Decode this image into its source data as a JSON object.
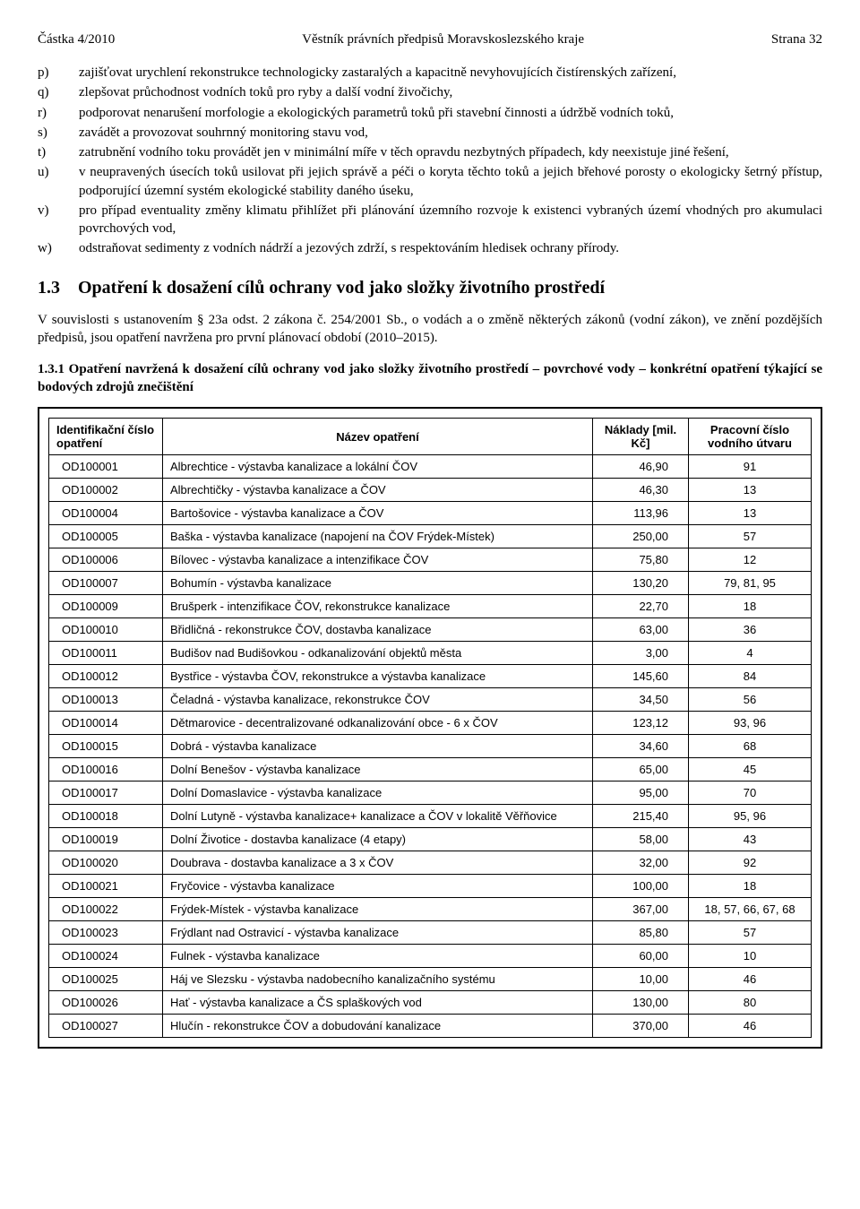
{
  "header": {
    "left": "Částka 4/2010",
    "center": "Věstník právních předpisů Moravskoslezského kraje",
    "right": "Strana 32"
  },
  "list": [
    {
      "label": "p)",
      "text": "zajišťovat urychlení rekonstrukce technologicky zastaralých a kapacitně nevyhovujících čistírenských zařízení,"
    },
    {
      "label": "q)",
      "text": "zlepšovat průchodnost vodních toků pro ryby a další vodní živočichy,"
    },
    {
      "label": "r)",
      "text": "podporovat nenarušení morfologie a ekologických parametrů toků při stavební činnosti a údržbě vodních toků,"
    },
    {
      "label": "s)",
      "text": "zavádět a provozovat souhrnný monitoring stavu vod,"
    },
    {
      "label": "t)",
      "text": "zatrubnění vodního toku provádět jen v minimální míře v těch opravdu nezbytných případech, kdy neexistuje jiné řešení,"
    },
    {
      "label": "u)",
      "text": "v neupravených úsecích toků usilovat při jejich správě a péči o koryta těchto toků a jejich břehové porosty o ekologicky šetrný přístup, podporující územní systém ekologické stability daného úseku,"
    },
    {
      "label": "v)",
      "text": "pro případ eventuality změny klimatu přihlížet při plánování územního rozvoje k existenci vybraných území vhodných pro akumulaci povrchových vod,"
    },
    {
      "label": "w)",
      "text": "odstraňovat sedimenty z vodních nádrží a jezových zdrží, s respektováním hledisek ochrany přírody."
    }
  ],
  "section_1_3": {
    "heading": "1.3 Opatření k dosažení cílů ochrany vod jako složky životního prostředí",
    "intro": "V souvislosti s ustanovením § 23a odst. 2 zákona č. 254/2001 Sb., o vodách a o změně některých zákonů (vodní zákon), ve znění pozdějších předpisů, jsou opatření navržena pro první plánovací období (2010–2015).",
    "sub_1_3_1": "1.3.1 Opatření navržená k dosažení cílů ochrany vod jako složky životního prostředí – povrchové vody – konkrétní opatření týkající se bodových zdrojů znečištění"
  },
  "table": {
    "headers": {
      "id": "Identifikační číslo opatření",
      "name": "Název opatření",
      "cost": "Náklady [mil. Kč]",
      "unit": "Pracovní číslo vodního útvaru"
    },
    "rows": [
      {
        "id": "OD100001",
        "name": "Albrechtice - výstavba kanalizace a lokální ČOV",
        "cost": "46,90",
        "unit": "91"
      },
      {
        "id": "OD100002",
        "name": "Albrechtičky - výstavba kanalizace a ČOV",
        "cost": "46,30",
        "unit": "13"
      },
      {
        "id": "OD100004",
        "name": "Bartošovice - výstavba kanalizace a ČOV",
        "cost": "113,96",
        "unit": "13"
      },
      {
        "id": "OD100005",
        "name": "Baška - výstavba kanalizace (napojení na ČOV Frýdek-Místek)",
        "cost": "250,00",
        "unit": "57"
      },
      {
        "id": "OD100006",
        "name": "Bílovec - výstavba kanalizace a intenzifikace ČOV",
        "cost": "75,80",
        "unit": "12"
      },
      {
        "id": "OD100007",
        "name": "Bohumín - výstavba kanalizace",
        "cost": "130,20",
        "unit": "79, 81, 95"
      },
      {
        "id": "OD100009",
        "name": "Brušperk - intenzifikace ČOV, rekonstrukce kanalizace",
        "cost": "22,70",
        "unit": "18"
      },
      {
        "id": "OD100010",
        "name": "Břidličná - rekonstrukce ČOV, dostavba kanalizace",
        "cost": "63,00",
        "unit": "36"
      },
      {
        "id": "OD100011",
        "name": "Budišov nad Budišovkou - odkanalizování objektů města",
        "cost": "3,00",
        "unit": "4"
      },
      {
        "id": "OD100012",
        "name": "Bystřice - výstavba ČOV, rekonstrukce a výstavba kanalizace",
        "cost": "145,60",
        "unit": "84"
      },
      {
        "id": "OD100013",
        "name": "Čeladná - výstavba kanalizace, rekonstrukce ČOV",
        "cost": "34,50",
        "unit": "56"
      },
      {
        "id": "OD100014",
        "name": "Dětmarovice - decentralizované odkanalizování obce - 6 x ČOV",
        "cost": "123,12",
        "unit": "93, 96"
      },
      {
        "id": "OD100015",
        "name": "Dobrá - výstavba kanalizace",
        "cost": "34,60",
        "unit": "68"
      },
      {
        "id": "OD100016",
        "name": "Dolní Benešov - výstavba kanalizace",
        "cost": "65,00",
        "unit": "45"
      },
      {
        "id": "OD100017",
        "name": "Dolní Domaslavice - výstavba kanalizace",
        "cost": "95,00",
        "unit": "70"
      },
      {
        "id": "OD100018",
        "name": "Dolní Lutyně - výstavba kanalizace+ kanalizace a ČOV v lokalitě Věřňovice",
        "cost": "215,40",
        "unit": "95, 96"
      },
      {
        "id": "OD100019",
        "name": "Dolní Životice - dostavba kanalizace (4 etapy)",
        "cost": "58,00",
        "unit": "43"
      },
      {
        "id": "OD100020",
        "name": "Doubrava - dostavba kanalizace a 3 x ČOV",
        "cost": "32,00",
        "unit": "92"
      },
      {
        "id": "OD100021",
        "name": "Fryčovice - výstavba kanalizace",
        "cost": "100,00",
        "unit": "18"
      },
      {
        "id": "OD100022",
        "name": "Frýdek-Místek - výstavba kanalizace",
        "cost": "367,00",
        "unit": "18, 57, 66, 67, 68"
      },
      {
        "id": "OD100023",
        "name": "Frýdlant nad Ostravicí - výstavba kanalizace",
        "cost": "85,80",
        "unit": "57"
      },
      {
        "id": "OD100024",
        "name": "Fulnek - výstavba kanalizace",
        "cost": "60,00",
        "unit": "10"
      },
      {
        "id": "OD100025",
        "name": "Háj ve Slezsku - výstavba nadobecního kanalizačního systému",
        "cost": "10,00",
        "unit": "46"
      },
      {
        "id": "OD100026",
        "name": "Hať - výstavba kanalizace a ČS splaškových vod",
        "cost": "130,00",
        "unit": "80"
      },
      {
        "id": "OD100027",
        "name": "Hlučín - rekonstrukce ČOV a dobudování kanalizace",
        "cost": "370,00",
        "unit": "46"
      }
    ]
  }
}
